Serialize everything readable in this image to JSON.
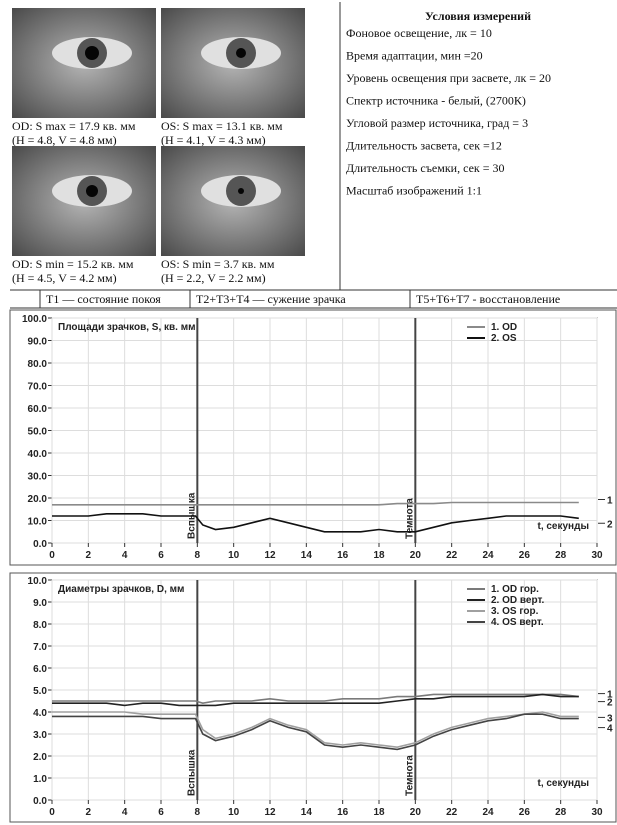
{
  "photos": [
    {
      "caption": "OD: S max = 17.9 кв. мм",
      "sub": "(H = 4.8, V = 4.8 мм)"
    },
    {
      "caption": "OS: S max = 13.1 кв. мм",
      "sub": "(H = 4.1, V = 4.3 мм)"
    },
    {
      "caption": "OD: S min = 15.2 кв. мм",
      "sub": "(H = 4.5, V = 4.2 мм)"
    },
    {
      "caption": "OS: S min = 3.7 кв. мм",
      "sub": "(H = 2.2, V = 2.2 мм)"
    }
  ],
  "conditions": {
    "title": "Условия измерений",
    "items": [
      "Фоновое освещение, лк = 10",
      "Время адаптации, мин =20",
      "Уровень освещения при засвете, лк = 20",
      "Спектр источника - белый, (2700К)",
      "Угловой размер источника, град = 3",
      "Длительность засвета, сек =12",
      "Длительность съемки, сек = 30",
      "Масштаб изображений 1:1"
    ]
  },
  "phases": [
    "T1 — состояние покоя",
    "T2+T3+T4 — сужение зрачка",
    "T5+T6+T7 - восстановление"
  ],
  "chart_data": [
    {
      "type": "line",
      "title": "Площади зрачков, S, кв. мм",
      "x_label": "t, секунды",
      "grid": true,
      "legend": "upper right",
      "x": [
        0,
        1,
        2,
        3,
        4,
        5,
        6,
        7,
        7.9,
        8.3,
        9,
        10,
        11,
        12,
        13,
        14,
        15,
        16,
        17,
        18,
        19,
        20,
        21,
        22,
        23,
        24,
        25,
        26,
        27,
        28,
        29
      ],
      "xlim": [
        0,
        30
      ],
      "xticks": [
        0,
        2,
        4,
        6,
        8,
        10,
        12,
        14,
        16,
        18,
        20,
        22,
        24,
        26,
        28,
        30
      ],
      "ylim": [
        0,
        100
      ],
      "yticks": [
        {
          "value": 0,
          "label": "0.0"
        },
        {
          "value": 10,
          "label": "10.0"
        },
        {
          "value": 20,
          "label": "20.0"
        },
        {
          "value": 30,
          "label": "30.0"
        },
        {
          "value": 40,
          "label": "40.0"
        },
        {
          "value": 50,
          "label": "50.0"
        },
        {
          "value": 60,
          "label": "60.0"
        },
        {
          "value": 70,
          "label": "70.0"
        },
        {
          "value": 80,
          "label": "80.0"
        },
        {
          "value": 90,
          "label": "90.0"
        },
        {
          "value": 100,
          "label": "100.0"
        }
      ],
      "annotations": [
        {
          "x": 8,
          "text": "Вспышка"
        },
        {
          "x": 20,
          "text": "Темнота"
        }
      ],
      "series": [
        {
          "name": "1. OD",
          "end_label": "1",
          "color": "#8a8a8a",
          "values": [
            17,
            17,
            17,
            17,
            17,
            17,
            17,
            17,
            17,
            17,
            17,
            17,
            17,
            17,
            17,
            17,
            17,
            17,
            17,
            17,
            17.5,
            17.5,
            17.5,
            18,
            18,
            18,
            18,
            18,
            18,
            18,
            18
          ]
        },
        {
          "name": "2. OS",
          "end_label": "2",
          "color": "#111111",
          "values": [
            12,
            12,
            12,
            13,
            13,
            13,
            12,
            12,
            12,
            8,
            6,
            7,
            9,
            11,
            9,
            7,
            5,
            5,
            5,
            6,
            5,
            5,
            7,
            9,
            10,
            11,
            12,
            12,
            12,
            12,
            11
          ]
        }
      ]
    },
    {
      "type": "line",
      "title": "Диаметры зрачков, D, мм",
      "x_label": "t, секунды",
      "grid": true,
      "legend": "upper right",
      "x": [
        0,
        1,
        2,
        3,
        4,
        5,
        6,
        7,
        7.9,
        8.3,
        9,
        10,
        11,
        12,
        13,
        14,
        15,
        16,
        17,
        18,
        19,
        20,
        21,
        22,
        23,
        24,
        25,
        26,
        27,
        28,
        29
      ],
      "xlim": [
        0,
        30
      ],
      "xticks": [
        0,
        2,
        4,
        6,
        8,
        10,
        12,
        14,
        16,
        18,
        20,
        22,
        24,
        26,
        28,
        30
      ],
      "ylim": [
        0,
        10
      ],
      "yticks": [
        {
          "value": 0,
          "label": "0.0"
        },
        {
          "value": 1,
          "label": "1.0"
        },
        {
          "value": 2,
          "label": "2.0"
        },
        {
          "value": 3,
          "label": "3.0"
        },
        {
          "value": 4,
          "label": "4.0"
        },
        {
          "value": 5,
          "label": "5.0"
        },
        {
          "value": 6,
          "label": "6.0"
        },
        {
          "value": 7,
          "label": "7.0"
        },
        {
          "value": 8,
          "label": "8.0"
        },
        {
          "value": 9,
          "label": "9.0"
        },
        {
          "value": 10,
          "label": "10.0"
        }
      ],
      "annotations": [
        {
          "x": 8,
          "text": "Вспышка"
        },
        {
          "x": 20,
          "text": "Темнота"
        }
      ],
      "series": [
        {
          "name": "1. OD гор.",
          "end_label": "1",
          "color": "#7a7a7a",
          "values": [
            4.5,
            4.5,
            4.5,
            4.5,
            4.5,
            4.5,
            4.5,
            4.5,
            4.5,
            4.4,
            4.5,
            4.5,
            4.5,
            4.6,
            4.5,
            4.5,
            4.5,
            4.6,
            4.6,
            4.6,
            4.7,
            4.7,
            4.8,
            4.8,
            4.8,
            4.8,
            4.8,
            4.8,
            4.8,
            4.8,
            4.7
          ]
        },
        {
          "name": "2. OD верт.",
          "end_label": "2",
          "color": "#222222",
          "values": [
            4.4,
            4.4,
            4.4,
            4.4,
            4.3,
            4.4,
            4.4,
            4.3,
            4.3,
            4.3,
            4.3,
            4.4,
            4.4,
            4.4,
            4.4,
            4.4,
            4.4,
            4.4,
            4.4,
            4.4,
            4.5,
            4.6,
            4.6,
            4.7,
            4.7,
            4.7,
            4.7,
            4.7,
            4.8,
            4.7,
            4.7
          ]
        },
        {
          "name": "3. OS гор.",
          "end_label": "3",
          "color": "#a0a0a0",
          "values": [
            4.0,
            4.0,
            4.0,
            4.0,
            4.0,
            3.9,
            3.9,
            3.9,
            3.9,
            3.2,
            2.8,
            3.0,
            3.3,
            3.7,
            3.4,
            3.2,
            2.6,
            2.5,
            2.6,
            2.5,
            2.4,
            2.6,
            3.0,
            3.3,
            3.5,
            3.7,
            3.8,
            3.9,
            4.0,
            3.8,
            3.8
          ]
        },
        {
          "name": "4. OS верт.",
          "end_label": "4",
          "color": "#444444",
          "values": [
            3.8,
            3.8,
            3.8,
            3.8,
            3.8,
            3.8,
            3.7,
            3.7,
            3.7,
            3.0,
            2.7,
            2.9,
            3.2,
            3.6,
            3.3,
            3.1,
            2.5,
            2.4,
            2.5,
            2.4,
            2.3,
            2.5,
            2.9,
            3.2,
            3.4,
            3.6,
            3.7,
            3.9,
            3.9,
            3.7,
            3.7
          ]
        }
      ]
    }
  ]
}
